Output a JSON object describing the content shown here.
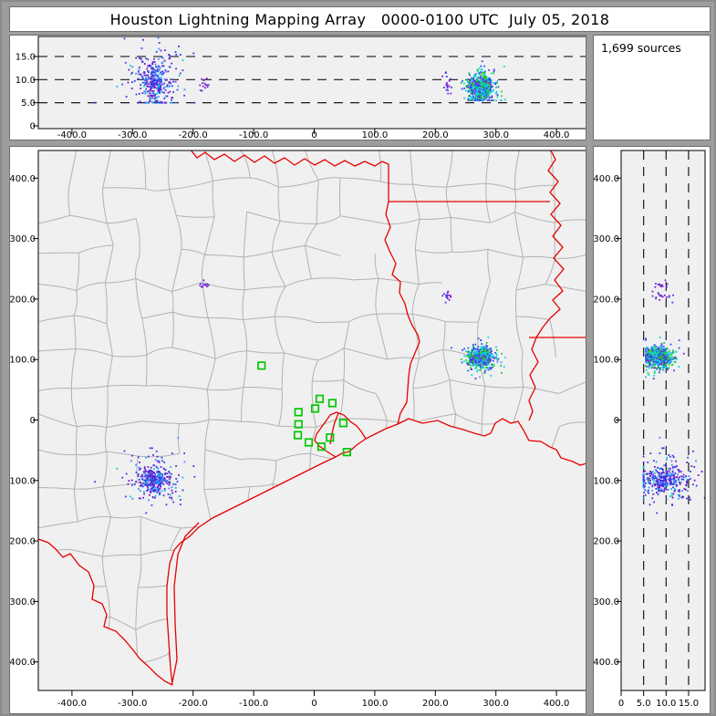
{
  "window": {
    "title": "Houston Lightning Mapping Array   0000-0100 UTC  July 05, 2018"
  },
  "sources_box": {
    "label": "1,699 sources"
  },
  "chart_data": {
    "type": "scatter",
    "title": "Houston Lightning Mapping Array   0000-0100 UTC  July 05, 2018",
    "total_sources_label": "1,699 sources",
    "panels": [
      {
        "id": "ew-altitude-panel",
        "position": "top",
        "x_tick_labels": [
          "-400.0",
          "-300.0",
          "-200.0",
          "-100.0",
          "0",
          "100.0",
          "200.0",
          "300.0",
          "400.0"
        ],
        "x_tick_values": [
          -400,
          -300,
          -200,
          -100,
          0,
          100,
          200,
          300,
          400
        ],
        "y_tick_labels": [
          "0",
          "5.0",
          "10.0",
          "15.0"
        ],
        "y_tick_values": [
          0,
          5,
          10,
          15
        ],
        "dashed_altitudes_km": [
          5,
          10,
          15
        ],
        "x_range_km": [
          -456,
          449
        ],
        "y_range_km": [
          0,
          19.5
        ]
      },
      {
        "id": "plan-view-panel",
        "position": "main",
        "x_tick_labels": [
          "-400.0",
          "-300.0",
          "-200.0",
          "-100.0",
          "0",
          "100.0",
          "200.0",
          "300.0",
          "400.0"
        ],
        "x_tick_values": [
          -400,
          -300,
          -200,
          -100,
          0,
          100,
          200,
          300,
          400
        ],
        "y_tick_labels": [
          "400.0",
          "300.0",
          "200.0",
          "100.0",
          "0",
          "-100.0",
          "-200.0",
          "-300.0",
          "-400.0"
        ],
        "y_tick_values": [
          400,
          300,
          200,
          100,
          0,
          -100,
          -200,
          -300,
          -400
        ],
        "x_range_km": [
          -456,
          449
        ],
        "y_range_km": [
          -447,
          446
        ]
      },
      {
        "id": "altitude-ns-panel",
        "position": "right",
        "x_tick_labels": [
          "0",
          "5.0",
          "10.0",
          "15.0"
        ],
        "x_tick_values": [
          0,
          5,
          10,
          15
        ],
        "y_tick_labels": [
          "400.0",
          "300.0",
          "200.0",
          "100.0",
          "0",
          "-100.0",
          "-200.0",
          "-300.0",
          "-400.0"
        ],
        "y_tick_values": [
          400,
          300,
          200,
          100,
          0,
          -100,
          -200,
          -300,
          -400
        ],
        "dashed_altitudes_km": [
          5,
          10,
          15
        ],
        "x_range_km": [
          0,
          18.7
        ],
        "y_range_km": [
          -447,
          446
        ]
      }
    ],
    "clusters": [
      {
        "name": "northeast-storm",
        "east": 276,
        "north": 104,
        "alt_km": 8.2,
        "alt_sd": 1.4,
        "alt_min": 5.5,
        "alt_max": 14.5,
        "core_sd": [
          8,
          7.5
        ],
        "halo_sd": [
          16,
          12
        ],
        "halo_frac": 0.28,
        "count": 720,
        "palette": [
          [
            "#00dce8",
            0.3
          ],
          [
            "#22cc22",
            0.24
          ],
          [
            "#2a52ee",
            0.26
          ],
          [
            "#7a22d8",
            0.14
          ],
          [
            "#49a8ff",
            0.06
          ]
        ]
      },
      {
        "name": "southwest-storm",
        "east": -262,
        "north": -100,
        "alt_km": 9.5,
        "alt_sd": 2.5,
        "alt_min": 5,
        "alt_max": 19,
        "core_sd": [
          9,
          9
        ],
        "halo_sd": [
          26,
          22
        ],
        "halo_frac": 0.35,
        "count": 380,
        "palette": [
          [
            "#6a1bd0",
            0.45
          ],
          [
            "#2a3fee",
            0.28
          ],
          [
            "#3f8cff",
            0.15
          ],
          [
            "#00c8e8",
            0.12
          ]
        ]
      },
      {
        "name": "north-specks",
        "east": -184,
        "north": 222,
        "alt_km": 9,
        "alt_sd": 1,
        "alt_min": 7,
        "alt_max": 11,
        "core_sd": [
          4,
          2.5
        ],
        "halo_sd": [
          6,
          4
        ],
        "halo_frac": 0.2,
        "count": 14,
        "palette": [
          [
            "#7a22d8",
            0.8
          ],
          [
            "#2a52ee",
            0.2
          ]
        ]
      },
      {
        "name": "northeast-specks",
        "east": 220,
        "north": 206,
        "alt_km": 9.5,
        "alt_sd": 1.2,
        "alt_min": 7,
        "alt_max": 12,
        "core_sd": [
          3,
          4
        ],
        "halo_sd": [
          5,
          6
        ],
        "halo_frac": 0.2,
        "count": 18,
        "palette": [
          [
            "#7a22d8",
            0.7
          ],
          [
            "#2a3fee",
            0.3
          ]
        ]
      }
    ],
    "stations_km": [
      [
        -87,
        90
      ],
      [
        9,
        35
      ],
      [
        30,
        28
      ],
      [
        1.5,
        19
      ],
      [
        -26,
        13
      ],
      [
        -26,
        -7
      ],
      [
        -27,
        -25
      ],
      [
        -9,
        -37
      ],
      [
        26,
        -29
      ],
      [
        12,
        -44
      ],
      [
        48,
        -5
      ],
      [
        54,
        -53
      ]
    ],
    "station_color": "#00c800",
    "colors": {
      "county_lines": "#b2b2b2",
      "state_borders": "#e60000",
      "plot_background": "#f0f0f0",
      "frame_gray": "#9d9d9d"
    }
  }
}
